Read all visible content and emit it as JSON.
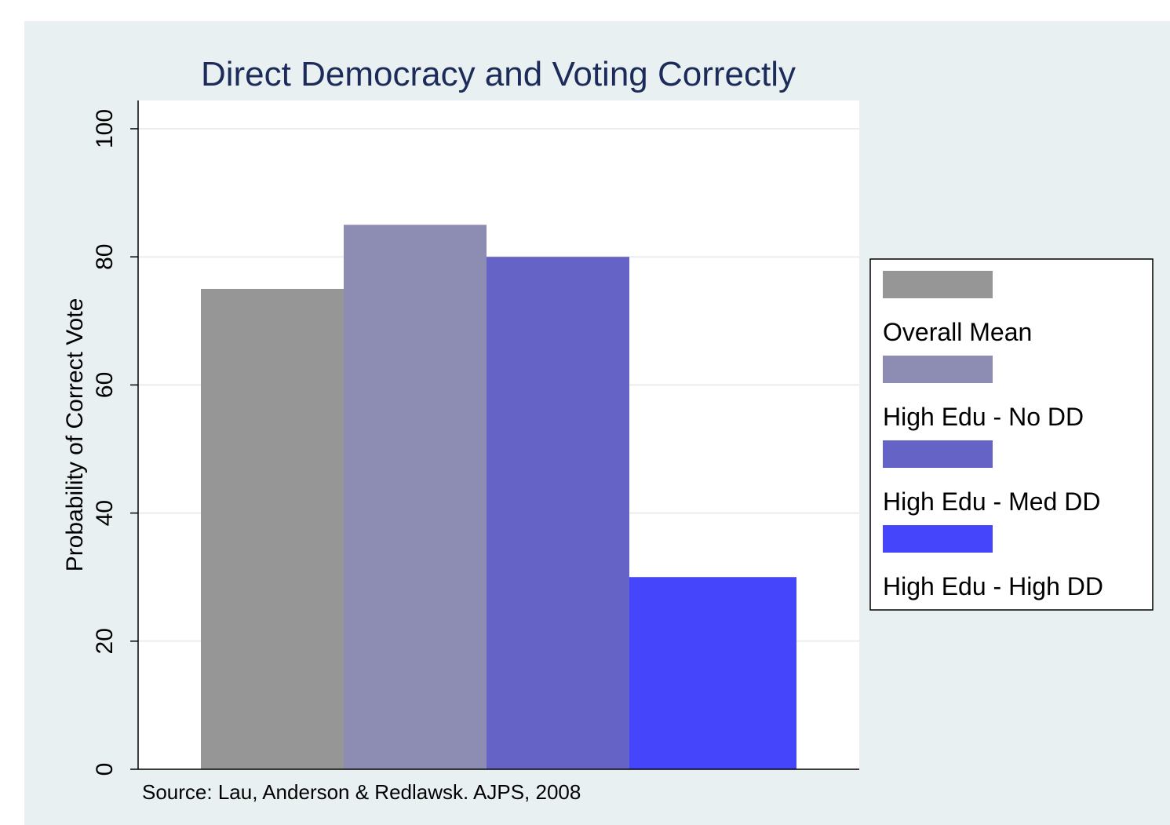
{
  "chart_data": {
    "type": "bar",
    "title": "Direct Democracy and Voting Correctly",
    "xlabel": "",
    "ylabel": "Probability of Correct Vote",
    "ylim": [
      0,
      100
    ],
    "yticks": [
      "0",
      "20",
      "40",
      "60",
      "80",
      "100"
    ],
    "grid": true,
    "legend_position": "right",
    "note": "Source:  Lau, Anderson & Redlawsk. AJPS, 2008",
    "series": [
      {
        "name": "Overall Mean",
        "values": [
          75
        ],
        "color": "#969696"
      },
      {
        "name": "High Edu - No DD",
        "values": [
          85
        ],
        "color": "#8d8cb3"
      },
      {
        "name": "High Edu - Med DD",
        "values": [
          80
        ],
        "color": "#6564c6"
      },
      {
        "name": "High Edu - High DD",
        "values": [
          30
        ],
        "color": "#4545fc"
      }
    ]
  }
}
